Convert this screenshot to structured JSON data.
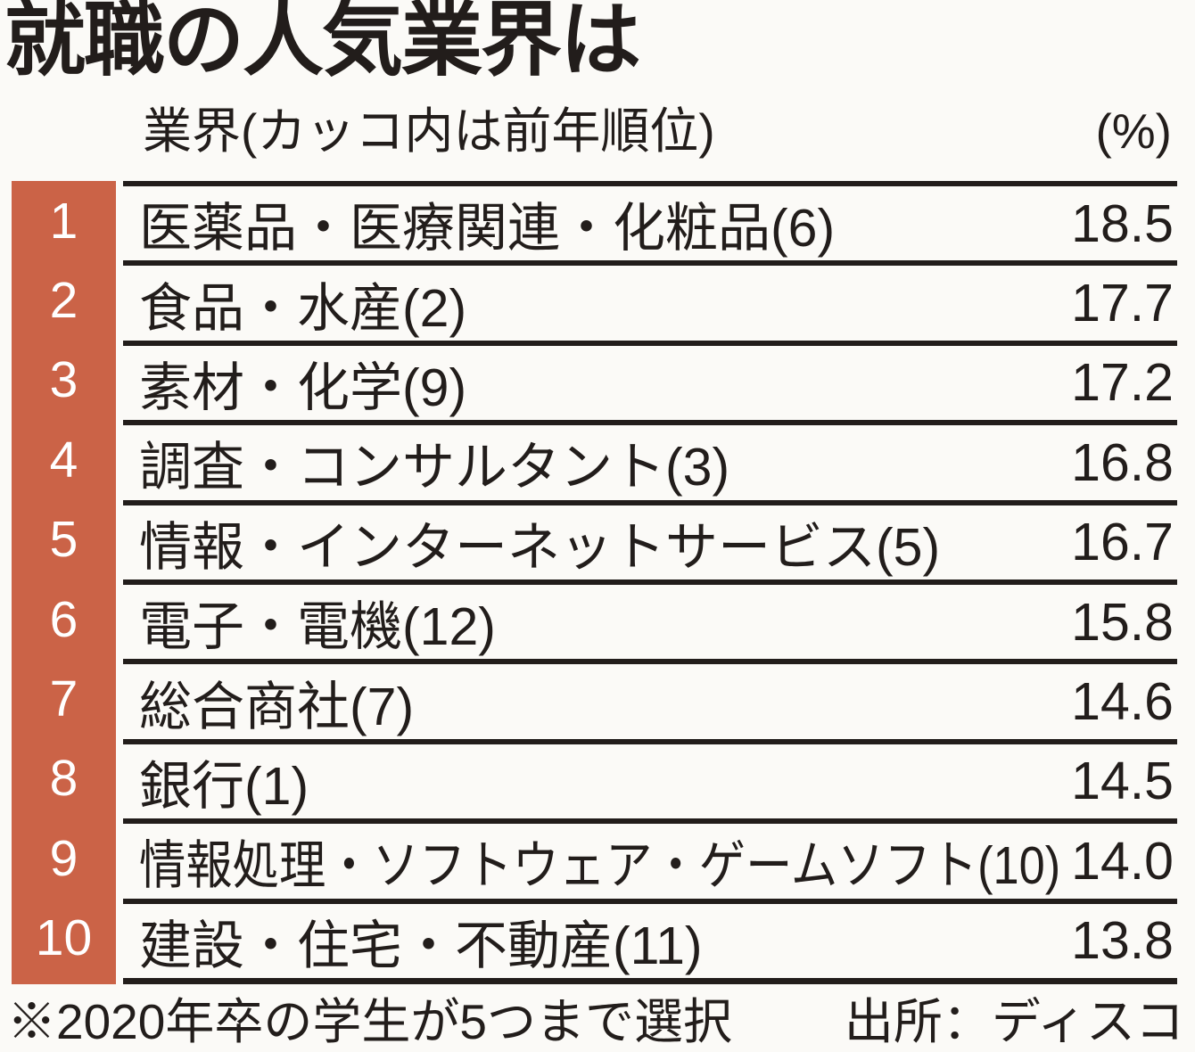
{
  "page": {
    "title": "就職の人気業界は",
    "columns": {
      "industry": "業界(カッコ内は前年順位)",
      "percent": "(%)"
    },
    "footer": {
      "note": "※2020年卒の学生が5つまで選択",
      "source": "出所：ディスコ"
    }
  },
  "colors": {
    "rank_bar": "#cb6347",
    "ink": "#221d1b",
    "background": "#fbfaf7",
    "rank_text": "#ffffff"
  },
  "chart_data": {
    "type": "table",
    "title": "就職の人気業界は",
    "unit": "%",
    "columns": [
      "順位",
      "業界",
      "前年順位",
      "(%)"
    ],
    "rows": [
      {
        "rank": 1,
        "industry": "医薬品・医療関連・化粧品",
        "prev_rank": 6,
        "percent": 18.5
      },
      {
        "rank": 2,
        "industry": "食品・水産",
        "prev_rank": 2,
        "percent": 17.7
      },
      {
        "rank": 3,
        "industry": "素材・化学",
        "prev_rank": 9,
        "percent": 17.2
      },
      {
        "rank": 4,
        "industry": "調査・コンサルタント",
        "prev_rank": 3,
        "percent": 16.8
      },
      {
        "rank": 5,
        "industry": "情報・インターネットサービス",
        "prev_rank": 5,
        "percent": 16.7
      },
      {
        "rank": 6,
        "industry": "電子・電機",
        "prev_rank": 12,
        "percent": 15.8
      },
      {
        "rank": 7,
        "industry": "総合商社",
        "prev_rank": 7,
        "percent": 14.6
      },
      {
        "rank": 8,
        "industry": "銀行",
        "prev_rank": 1,
        "percent": 14.5
      },
      {
        "rank": 9,
        "industry": "情報処理・ソフトウェア・ゲームソフト",
        "prev_rank": 10,
        "percent": 14.0
      },
      {
        "rank": 10,
        "industry": "建設・住宅・不動産",
        "prev_rank": 11,
        "percent": 13.8
      }
    ],
    "note": "※2020年卒の学生が5つまで選択",
    "source": "出所：ディスコ",
    "legend_position": "none",
    "grid": "horizontal-separators"
  }
}
